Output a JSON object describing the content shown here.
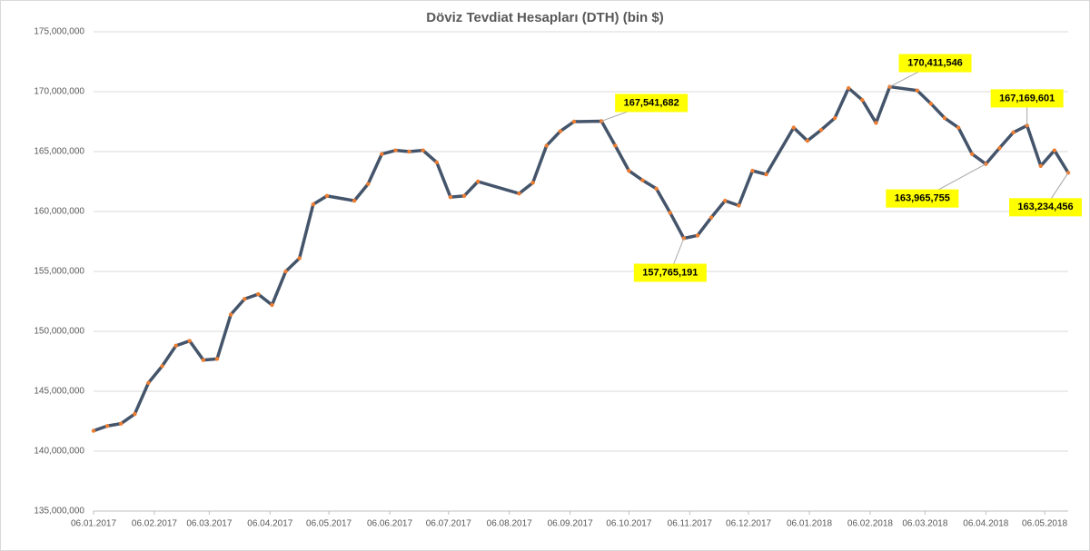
{
  "chart_data": {
    "type": "line",
    "title": "Döviz Tevdiat Hesapları (DTH) (bin $)",
    "x": [
      0,
      7,
      14,
      21,
      28,
      35,
      42,
      49,
      56,
      63,
      70,
      77,
      84,
      91,
      98,
      105,
      112,
      119,
      133,
      140,
      147,
      154,
      161,
      168,
      175,
      182,
      189,
      196,
      217,
      224,
      231,
      238,
      245,
      259,
      266,
      273,
      280,
      287,
      294,
      301,
      308,
      315,
      322,
      329,
      336,
      343,
      357,
      364,
      371,
      378,
      385,
      392,
      399,
      406,
      420,
      427,
      434,
      441,
      448,
      455,
      462,
      469,
      476,
      483,
      490,
      497
    ],
    "series": [
      {
        "name": "DTH",
        "color": "#44546a",
        "marker_color": "#ed7d31",
        "values": [
          141700000,
          142100000,
          142300000,
          143100000,
          145700000,
          147100000,
          148800000,
          149200000,
          147600000,
          147700000,
          151400000,
          152700000,
          153100000,
          152200000,
          155000000,
          156100000,
          160600000,
          161300000,
          160900000,
          162300000,
          164800000,
          165100000,
          165000000,
          165100000,
          164100000,
          161200000,
          161300000,
          162500000,
          161500000,
          162400000,
          165500000,
          166700000,
          167500000,
          167541682,
          165500000,
          163400000,
          162600000,
          161900000,
          159900000,
          157765191,
          158000000,
          159500000,
          160900000,
          160500000,
          163400000,
          163100000,
          167000000,
          165900000,
          166800000,
          167800000,
          170300000,
          169300000,
          167400000,
          170411546,
          170100000,
          169000000,
          167800000,
          167000000,
          164800000,
          163965755,
          165300000,
          166600000,
          167169601,
          163800000,
          165100000,
          163234456
        ],
        "value_labels": [
          null,
          null,
          null,
          null,
          null,
          null,
          null,
          null,
          null,
          null,
          null,
          null,
          null,
          null,
          null,
          null,
          null,
          null,
          null,
          null,
          null,
          null,
          null,
          null,
          null,
          null,
          null,
          null,
          null,
          null,
          null,
          null,
          null,
          "167,541,682",
          null,
          null,
          null,
          null,
          null,
          "157,765,191",
          null,
          null,
          null,
          null,
          null,
          null,
          null,
          null,
          null,
          null,
          null,
          null,
          null,
          "170,411,546",
          null,
          null,
          null,
          null,
          null,
          "163,965,755",
          null,
          null,
          "167,169,601",
          null,
          null,
          "163,234,456"
        ]
      }
    ],
    "label_color": "#ffff00",
    "xlim": [
      0,
      497
    ],
    "xticks": [
      {
        "value": 0,
        "label": "06.01.2017"
      },
      {
        "value": 31,
        "label": "06.02.2017"
      },
      {
        "value": 59,
        "label": "06.03.2017"
      },
      {
        "value": 90,
        "label": "06.04.2017"
      },
      {
        "value": 120,
        "label": "06.05.2017"
      },
      {
        "value": 151,
        "label": "06.06.2017"
      },
      {
        "value": 181,
        "label": "06.07.2017"
      },
      {
        "value": 212,
        "label": "06.08.2017"
      },
      {
        "value": 243,
        "label": "06.09.2017"
      },
      {
        "value": 273,
        "label": "06.10.2017"
      },
      {
        "value": 304,
        "label": "06.11.2017"
      },
      {
        "value": 334,
        "label": "06.12.2017"
      },
      {
        "value": 365,
        "label": "06.01.2018"
      },
      {
        "value": 396,
        "label": "06.02.2018"
      },
      {
        "value": 424,
        "label": "06.03.2018"
      },
      {
        "value": 455,
        "label": "06.04.2018"
      },
      {
        "value": 485,
        "label": "06.05.2018"
      }
    ],
    "ylim": [
      135000000,
      175000000
    ],
    "yticks": [
      {
        "value": 135000000,
        "label": "135,000,000"
      },
      {
        "value": 140000000,
        "label": "140,000,000"
      },
      {
        "value": 145000000,
        "label": "145,000,000"
      },
      {
        "value": 150000000,
        "label": "150,000,000"
      },
      {
        "value": 155000000,
        "label": "155,000,000"
      },
      {
        "value": 160000000,
        "label": "160,000,000"
      },
      {
        "value": 165000000,
        "label": "165,000,000"
      },
      {
        "value": 170000000,
        "label": "170,000,000"
      },
      {
        "value": 175000000,
        "label": "175,000,000"
      }
    ],
    "grid": true
  }
}
